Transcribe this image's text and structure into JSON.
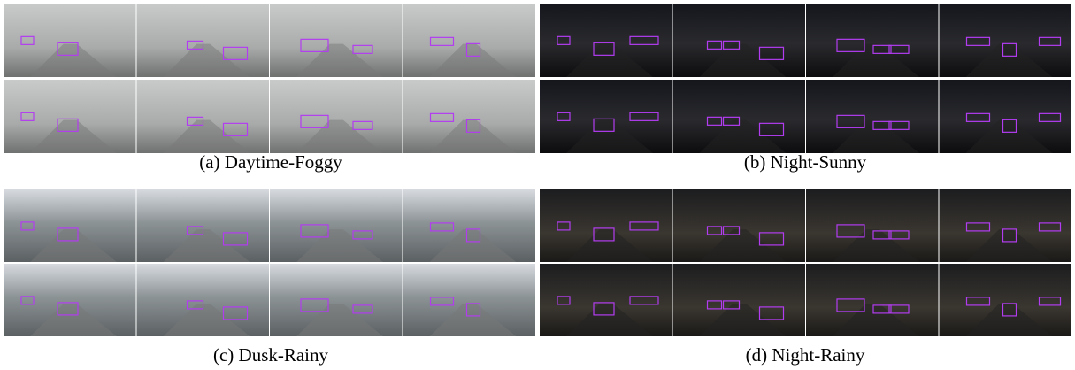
{
  "panels": [
    {
      "caption": "(a) Daytime-Foggy"
    },
    {
      "caption": "(b) Night-Sunny"
    },
    {
      "caption": "(c) Dusk-Rainy"
    },
    {
      "caption": "(d) Night-Rainy"
    }
  ]
}
